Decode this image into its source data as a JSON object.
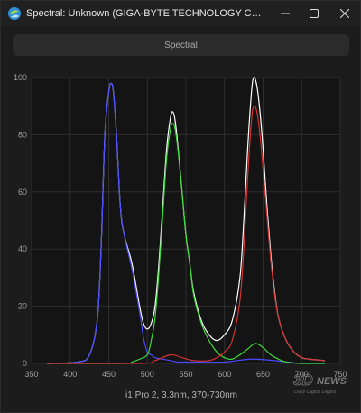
{
  "window": {
    "title": "Spectral: Unknown (GIGA-BYTE TECHNOLOGY CO., LTD. AORUS...",
    "app_icon": "spectral-app-icon",
    "controls": {
      "minimize_icon": "minimize-icon",
      "maximize_icon": "maximize-icon",
      "close_icon": "close-icon"
    }
  },
  "mode_button": {
    "label": "Spectral"
  },
  "watermark": {
    "brand": "3DNews",
    "tagline": "Daily Digital Digest"
  },
  "chart_data": {
    "type": "line",
    "title": "",
    "xlabel": "i1 Pro 2, 3.3nm, 370-730nm",
    "ylabel": "",
    "xlim": [
      350,
      750
    ],
    "ylim": [
      0,
      100
    ],
    "xticks": [
      350,
      400,
      450,
      500,
      550,
      600,
      650,
      700,
      750
    ],
    "yticks": [
      0,
      20,
      40,
      60,
      80,
      100
    ],
    "grid": true,
    "legend": "none",
    "series": [
      {
        "color": "#ffffff",
        "x": [
          370,
          410,
          425,
          435,
          440,
          445,
          450,
          453,
          456,
          460,
          465,
          470,
          480,
          490,
          495,
          500,
          505,
          510,
          515,
          520,
          525,
          530,
          533,
          536,
          540,
          545,
          550,
          555,
          560,
          570,
          580,
          590,
          600,
          610,
          620,
          625,
          630,
          635,
          638,
          642,
          646,
          650,
          655,
          660,
          665,
          670,
          680,
          690,
          700,
          710,
          730
        ],
        "values": [
          0,
          0.5,
          3,
          15,
          40,
          80,
          95,
          98,
          95,
          80,
          55,
          45,
          35,
          20,
          14,
          12,
          14,
          20,
          35,
          55,
          75,
          86,
          88,
          85,
          75,
          60,
          45,
          35,
          25,
          15,
          10,
          8,
          10,
          15,
          30,
          50,
          75,
          95,
          100,
          97,
          88,
          75,
          55,
          38,
          25,
          16,
          8,
          4,
          2,
          1.5,
          1
        ]
      },
      {
        "color": "#4a4aff",
        "x": [
          370,
          410,
          425,
          435,
          440,
          445,
          450,
          453,
          456,
          460,
          465,
          470,
          480,
          490,
          495,
          500,
          505,
          510,
          520,
          530,
          540,
          560,
          600,
          640,
          700,
          730
        ],
        "values": [
          0,
          0.5,
          3,
          15,
          40,
          80,
          95,
          98,
          95,
          80,
          55,
          45,
          33,
          18,
          9,
          4,
          3,
          2,
          1.5,
          1,
          0.5,
          0.5,
          0.5,
          1.5,
          0,
          0
        ]
      },
      {
        "color": "#3cd93c",
        "x": [
          370,
          470,
          480,
          490,
          500,
          505,
          510,
          515,
          520,
          525,
          530,
          533,
          536,
          540,
          545,
          550,
          555,
          560,
          570,
          580,
          590,
          600,
          610,
          620,
          630,
          640,
          650,
          660,
          670,
          680,
          700,
          730
        ],
        "values": [
          0,
          0,
          0.5,
          1.5,
          3,
          8,
          16,
          32,
          52,
          72,
          82,
          84,
          82,
          74,
          60,
          45,
          35,
          24,
          14,
          8,
          4,
          2,
          1.5,
          3,
          5,
          7,
          5.5,
          3,
          1.5,
          0.5,
          0,
          0
        ]
      },
      {
        "color": "#d23232",
        "x": [
          370,
          490,
          510,
          530,
          545,
          560,
          580,
          590,
          600,
          610,
          620,
          625,
          630,
          635,
          638,
          642,
          646,
          650,
          655,
          660,
          665,
          670,
          680,
          690,
          700,
          710,
          730
        ],
        "values": [
          0,
          0,
          1,
          3,
          2,
          1,
          1,
          2,
          4,
          8,
          22,
          40,
          65,
          85,
          90,
          88,
          80,
          68,
          52,
          36,
          24,
          16,
          8,
          4,
          2,
          1.5,
          1
        ]
      }
    ]
  }
}
